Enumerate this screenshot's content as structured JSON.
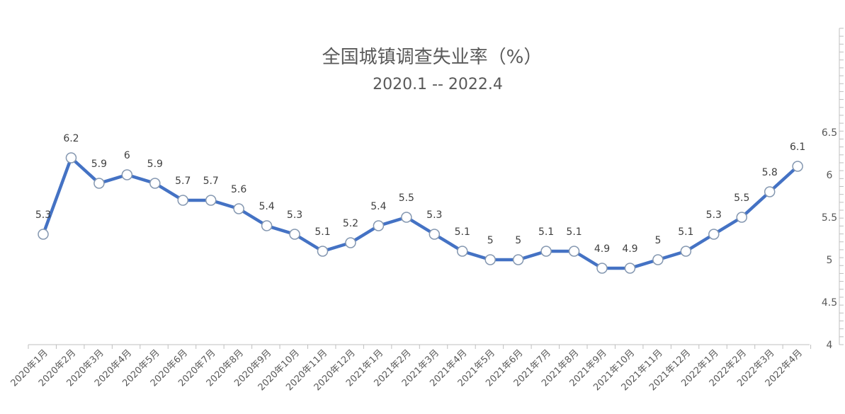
{
  "chart_data": {
    "type": "line",
    "title": "全国城镇调查失业率（%）",
    "subtitle": "2020.1 -- 2022.4",
    "categories": [
      "2020年1月",
      "2020年2月",
      "2020年3月",
      "2020年4月",
      "2020年5月",
      "2020年6月",
      "2020年7月",
      "2020年8月",
      "2020年9月",
      "2020年10月",
      "2020年11月",
      "2020年12月",
      "2021年1月",
      "2021年2月",
      "2021年3月",
      "2021年4月",
      "2021年5月",
      "2021年6月",
      "2021年7月",
      "2021年8月",
      "2021年9月",
      "2021年10月",
      "2021年11月",
      "2021年12月",
      "2022年1月",
      "2022年2月",
      "2022年3月",
      "2022年4月"
    ],
    "values": [
      5.3,
      6.2,
      5.9,
      6,
      5.9,
      5.7,
      5.7,
      5.6,
      5.4,
      5.3,
      5.1,
      5.2,
      5.4,
      5.5,
      5.3,
      5.1,
      5,
      5,
      5.1,
      5.1,
      4.9,
      4.9,
      5,
      5.1,
      5.3,
      5.5,
      5.8,
      6.1
    ],
    "value_labels": [
      "5.3",
      "6.2",
      "5.9",
      "6",
      "5.9",
      "5.7",
      "5.7",
      "5.6",
      "5.4",
      "5.3",
      "5.1",
      "5.2",
      "5.4",
      "5.5",
      "5.3",
      "5.1",
      "5",
      "5",
      "5.1",
      "5.1",
      "4.9",
      "4.9",
      "5",
      "5.1",
      "5.3",
      "5.5",
      "5.8",
      "6.1"
    ],
    "ylim": [
      4,
      6.5
    ],
    "yticks": [
      4,
      4.5,
      5,
      5.5,
      6,
      6.5
    ],
    "ytick_labels": [
      "4",
      "4.5",
      "5",
      "5.5",
      "6",
      "6.5"
    ],
    "y_axis_side": "right",
    "grid": false,
    "legend": "none",
    "colors": {
      "line": "#4472C4",
      "marker_fill": "#FFFFFF",
      "marker_stroke": "#8497B0",
      "text": "#595959",
      "axis": "#BFBFBF"
    }
  }
}
